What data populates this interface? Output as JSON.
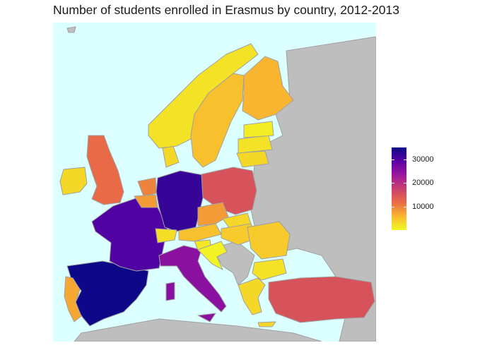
{
  "title": "Number of students enrolled in Erasmus by country, 2012-2013",
  "colors": {
    "sea": "#dcffff",
    "non_participant": "#bebebe",
    "border": "#a0a0a0",
    "scale": [
      "#f0f921",
      "#f9b62f",
      "#ea6d45",
      "#c93f6e",
      "#9c179e",
      "#5c01a6",
      "#0d0887"
    ]
  },
  "legend": {
    "min": 0,
    "max": 35000,
    "ticks": [
      {
        "value": 30000,
        "label": "30000"
      },
      {
        "value": 20000,
        "label": "20000"
      },
      {
        "value": 10000,
        "label": "10000"
      }
    ]
  },
  "map_data": {
    "type": "choropleth",
    "variable": "students enrolled in Erasmus",
    "approximate_values": {
      "Spain": 35000,
      "Germany": 32000,
      "France": 30000,
      "Italy": 25000,
      "Poland": 15000,
      "Turkey": 15000,
      "United Kingdom": 12000,
      "Netherlands": 10000,
      "Ireland": 3000,
      "Portugal": 7000,
      "Belgium": 8000,
      "Austria": 5000,
      "Czech Republic": 8000,
      "Sweden": 5000,
      "Finland": 6000,
      "Norway": 2000,
      "Denmark": 3000,
      "Switzerland": 2500,
      "Hungary": 4000,
      "Romania": 4000,
      "Slovakia": 3000,
      "Bulgaria": 2000,
      "Greece": 3000,
      "Lithuania": 3000,
      "Latvia": 2000,
      "Estonia": 1000,
      "Slovenia": 1500,
      "Croatia": 500
    }
  }
}
